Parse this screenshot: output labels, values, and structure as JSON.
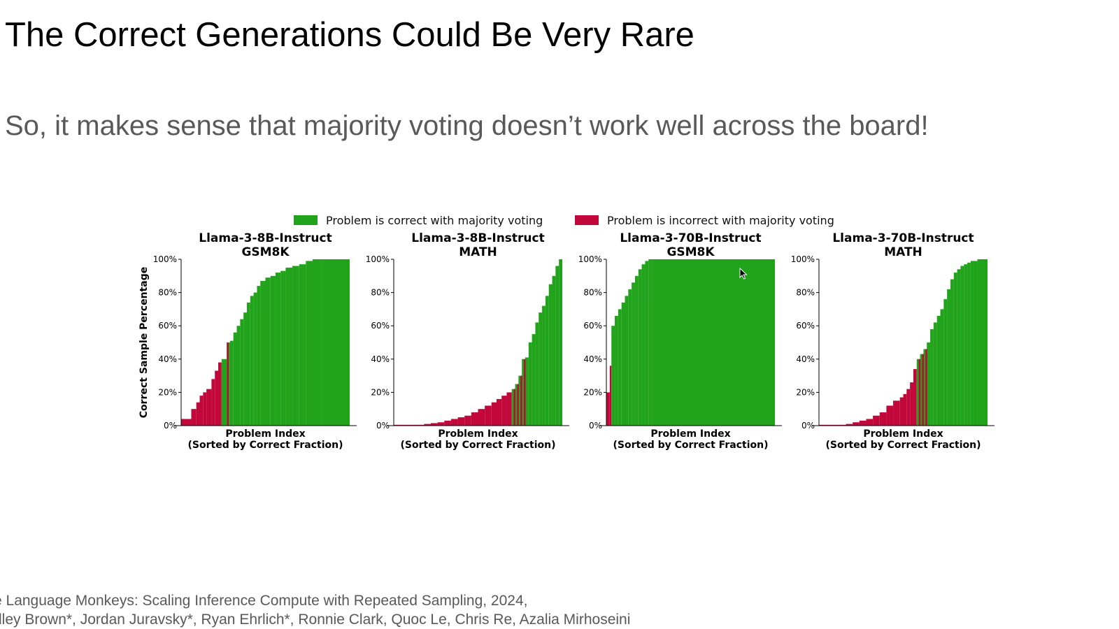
{
  "slide": {
    "title": "The Correct Generations Could Be Very Rare",
    "subtitle": "So, it makes sense that majority voting doesn’t work well across the board!",
    "citation_line_1": "e Language Monkeys: Scaling Inference Compute with Repeated Sampling, 2024,",
    "citation_line_2": "dley Brown*, Jordan Juravsky*, Ryan Ehrlich*, Ronnie Clark, Quoc Le, Chris Re, Azalia Mirhoseini"
  },
  "colors": {
    "correct": "#22a31c",
    "incorrect": "#c2073b"
  },
  "chart_data": [
    {
      "type": "bar",
      "title": "Llama-3-8B-Instruct",
      "subtitle": "GSM8K",
      "xlabel_line_1": "Problem Index",
      "xlabel_line_2": "(Sorted by Correct Fraction)",
      "ylabel": "Correct Sample Percentage",
      "ylim": [
        0,
        100
      ],
      "yticks": [
        "0%",
        "20%",
        "40%",
        "60%",
        "80%",
        "100%"
      ],
      "x": [
        0.06,
        0.09,
        0.11,
        0.13,
        0.15,
        0.18,
        0.2,
        0.22,
        0.24,
        0.27,
        0.29,
        0.31,
        0.33,
        0.35,
        0.37,
        0.39,
        0.41,
        0.43,
        0.45,
        0.47,
        0.5,
        0.53,
        0.56,
        0.59,
        0.62,
        0.66,
        0.7,
        0.74,
        0.78,
        0.83,
        1.0
      ],
      "values": [
        4,
        10,
        14,
        18,
        20,
        22,
        28,
        33,
        38,
        40,
        50,
        51,
        56,
        60,
        64,
        68,
        74,
        78,
        80,
        84,
        87,
        89,
        90,
        92,
        93,
        95,
        96,
        97,
        99,
        100,
        100
      ],
      "incorrect_from_x": 0.06,
      "incorrect_to_x": 0.24,
      "incorrect_extra_x": [
        0.28
      ]
    },
    {
      "type": "bar",
      "title": "Llama-3-8B-Instruct",
      "subtitle": "MATH",
      "xlabel_line_1": "Problem Index",
      "xlabel_line_2": "(Sorted by Correct Fraction)",
      "ylabel": "",
      "ylim": [
        0,
        100
      ],
      "yticks": [
        "0%",
        "20%",
        "40%",
        "60%",
        "80%",
        "100%"
      ],
      "x": [
        0.18,
        0.22,
        0.26,
        0.3,
        0.34,
        0.38,
        0.42,
        0.46,
        0.5,
        0.54,
        0.58,
        0.61,
        0.64,
        0.67,
        0.7,
        0.72,
        0.74,
        0.76,
        0.78,
        0.8,
        0.82,
        0.84,
        0.86,
        0.88,
        0.9,
        0.92,
        0.94,
        0.96,
        0.98,
        1.0
      ],
      "values": [
        0.5,
        1,
        1.5,
        2,
        3,
        4,
        5,
        6,
        8,
        10,
        12,
        14,
        16,
        18,
        20,
        22,
        25,
        30,
        40,
        41,
        50,
        55,
        62,
        68,
        72,
        78,
        85,
        90,
        96,
        100
      ],
      "incorrect_from_x": 0.18,
      "incorrect_to_x": 0.7,
      "incorrect_extra_x": [
        0.72,
        0.74,
        0.76,
        0.78
      ]
    },
    {
      "type": "bar",
      "title": "Llama-3-70B-Instruct",
      "subtitle": "GSM8K",
      "xlabel_line_1": "Problem Index",
      "xlabel_line_2": "(Sorted by Correct Fraction)",
      "ylabel": "",
      "ylim": [
        0,
        100
      ],
      "yticks": [
        "0%",
        "20%",
        "40%",
        "60%",
        "80%",
        "100%"
      ],
      "x": [
        0.02,
        0.03,
        0.05,
        0.07,
        0.09,
        0.11,
        0.13,
        0.15,
        0.17,
        0.19,
        0.21,
        0.23,
        0.25,
        0.27,
        1.0
      ],
      "values": [
        20,
        36,
        60,
        66,
        70,
        74,
        78,
        82,
        86,
        90,
        94,
        97,
        99,
        100,
        100
      ],
      "incorrect_from_x": 0.02,
      "incorrect_to_x": 0.03,
      "incorrect_extra_x": []
    },
    {
      "type": "bar",
      "title": "Llama-3-70B-Instruct",
      "subtitle": "MATH",
      "xlabel_line_1": "Problem Index",
      "xlabel_line_2": "(Sorted by Correct Fraction)",
      "ylabel": "",
      "ylim": [
        0,
        100
      ],
      "yticks": [
        "0%",
        "20%",
        "40%",
        "60%",
        "80%",
        "100%"
      ],
      "x": [
        0.16,
        0.2,
        0.24,
        0.28,
        0.32,
        0.36,
        0.4,
        0.44,
        0.48,
        0.5,
        0.52,
        0.54,
        0.56,
        0.58,
        0.6,
        0.62,
        0.64,
        0.66,
        0.68,
        0.7,
        0.72,
        0.74,
        0.76,
        0.78,
        0.8,
        0.82,
        0.84,
        0.86,
        0.88,
        0.9,
        0.94,
        1.0
      ],
      "values": [
        0.5,
        1,
        2,
        3,
        4,
        6,
        8,
        12,
        15,
        17,
        19,
        22,
        26,
        34,
        40,
        43,
        46,
        50,
        58,
        62,
        66,
        70,
        76,
        82,
        88,
        92,
        94,
        96,
        97,
        98,
        99,
        100
      ],
      "incorrect_from_x": 0.16,
      "incorrect_to_x": 0.58,
      "incorrect_extra_x": [
        0.6,
        0.62,
        0.64
      ]
    }
  ],
  "legend": {
    "correct_label": "Problem is correct with majority voting",
    "incorrect_label": "Problem is incorrect with majority voting",
    "placement": "top-center"
  }
}
